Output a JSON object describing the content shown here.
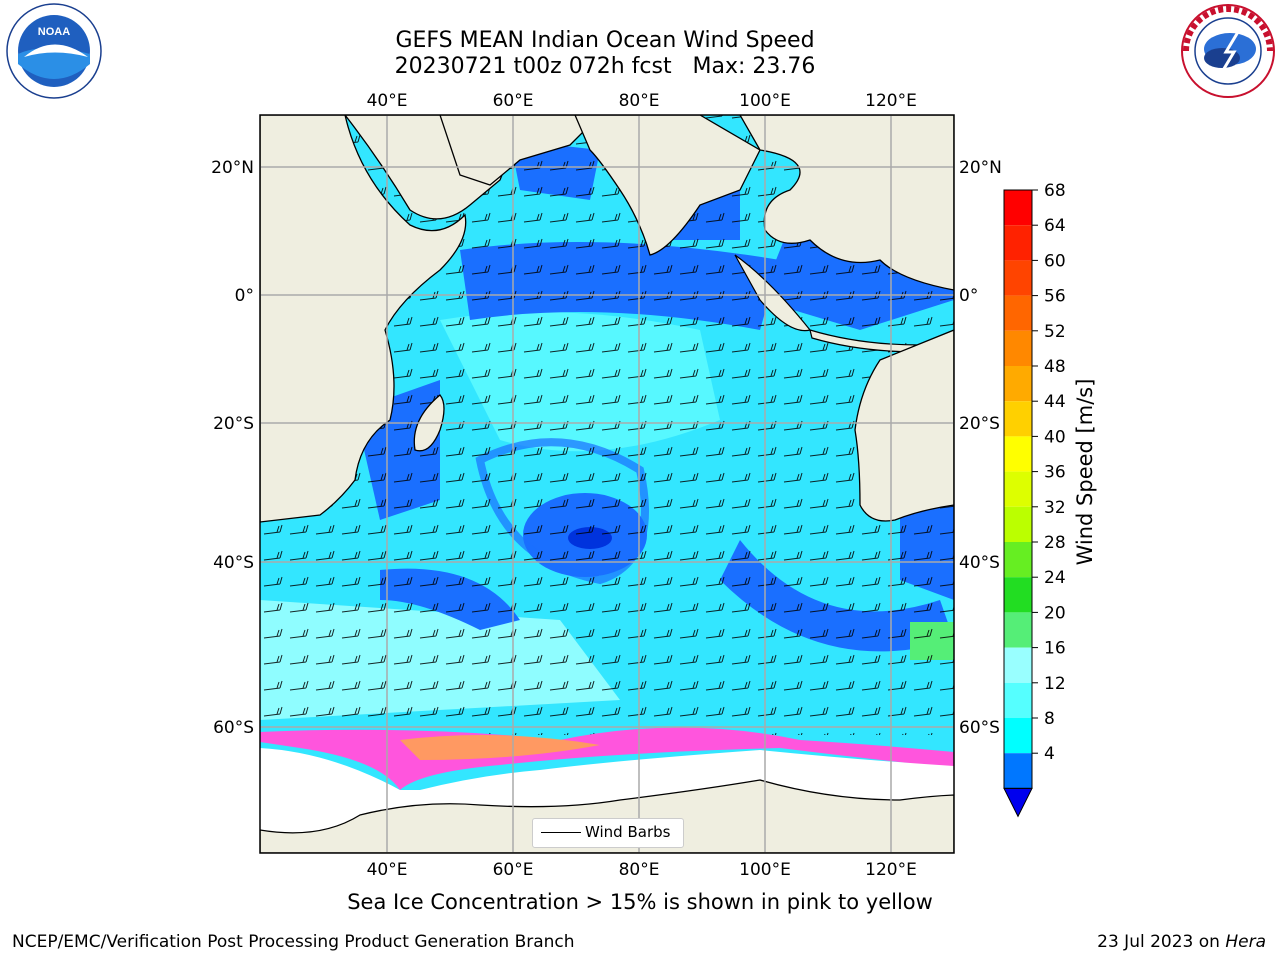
{
  "header": {
    "title_line1": "GEFS MEAN Indian Ocean Wind Speed",
    "title_line2": "20230721 t00z 072h fcst   Max: 23.76"
  },
  "logos": {
    "left": "NOAA",
    "left_ring_text": "NATIONAL OCEANIC AND ATMOSPHERIC ADMINISTRATION · U.S. DEPARTMENT OF COMMERCE",
    "right_ring_text": "NATIONAL WEATHER SERVICE"
  },
  "map": {
    "lon_labels": [
      "40°E",
      "60°E",
      "80°E",
      "100°E",
      "120°E"
    ],
    "lat_labels": [
      "20°N",
      "0°",
      "20°S",
      "40°S",
      "60°S"
    ],
    "legend_label": "Wind Barbs"
  },
  "colorbar": {
    "title": "Wind Speed [m/s]",
    "ticks": [
      "68",
      "64",
      "60",
      "56",
      "52",
      "48",
      "44",
      "40",
      "36",
      "32",
      "28",
      "24",
      "20",
      "16",
      "12",
      "8",
      "4"
    ],
    "colors": [
      "#ff0000",
      "#ff2200",
      "#ff4400",
      "#ff6600",
      "#ff8800",
      "#ffaa00",
      "#ffd000",
      "#ffff00",
      "#ddff00",
      "#bbff00",
      "#66ee22",
      "#22dd22",
      "#55ee77",
      "#99ffff",
      "#55ffff",
      "#00ffff",
      "#0077ff"
    ],
    "extend_color": "#0000ee"
  },
  "caption": "Sea Ice Concentration > 15% is shown in pink to yellow",
  "footer": {
    "left": "NCEP/EMC/Verification Post Processing Product Generation Branch",
    "right_date": "23 Jul 2023 on ",
    "right_host": "Hera"
  }
}
